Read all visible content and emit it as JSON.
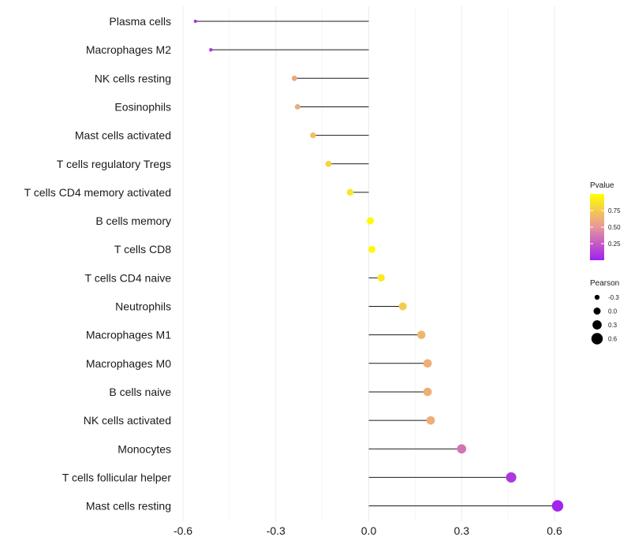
{
  "chart_data": {
    "type": "lollipop",
    "title": "",
    "xlabel": "",
    "ylabel": "",
    "xlim": [
      -0.6,
      0.6
    ],
    "x_ticks": [
      -0.6,
      -0.3,
      0.0,
      0.3,
      0.6
    ],
    "x_tick_labels": [
      "-0.6",
      "-0.3",
      "0.0",
      "0.3",
      "0.6"
    ],
    "grid": true,
    "categories": [
      "Plasma cells",
      "Macrophages M2",
      "NK cells resting",
      "Eosinophils",
      "Mast cells activated",
      "T cells regulatory  Tregs",
      "T cells CD4 memory activated",
      "B cells memory",
      "T cells CD8",
      "T cells CD4 naive",
      "Neutrophils",
      "Macrophages M1",
      "Macrophages M0",
      "B cells naive",
      "NK cells activated",
      "Monocytes",
      "T cells follicular helper",
      "Mast cells resting"
    ],
    "pearson": [
      -0.56,
      -0.51,
      -0.24,
      -0.23,
      -0.18,
      -0.13,
      -0.06,
      0.005,
      0.01,
      0.04,
      0.11,
      0.17,
      0.19,
      0.19,
      0.2,
      0.3,
      0.46,
      0.61
    ],
    "pvalue": [
      0.03,
      0.08,
      0.58,
      0.6,
      0.7,
      0.78,
      0.88,
      0.98,
      0.97,
      0.9,
      0.75,
      0.65,
      0.62,
      0.62,
      0.62,
      0.35,
      0.1,
      0.02
    ],
    "legend": {
      "color_title": "Pvalue",
      "color_ticks": [
        0.25,
        0.5,
        0.75
      ],
      "color_tick_labels": [
        "0.25",
        "0.50",
        "0.75"
      ],
      "color_low": "#a020f0",
      "color_mid": "#e8969b",
      "color_high": "#ffff00",
      "size_title": "Pearson",
      "size_values": [
        -0.3,
        0.0,
        0.3,
        0.6
      ],
      "size_labels": [
        "-0.3",
        "0.0",
        "0.3",
        "0.6"
      ],
      "placement": "right"
    }
  }
}
